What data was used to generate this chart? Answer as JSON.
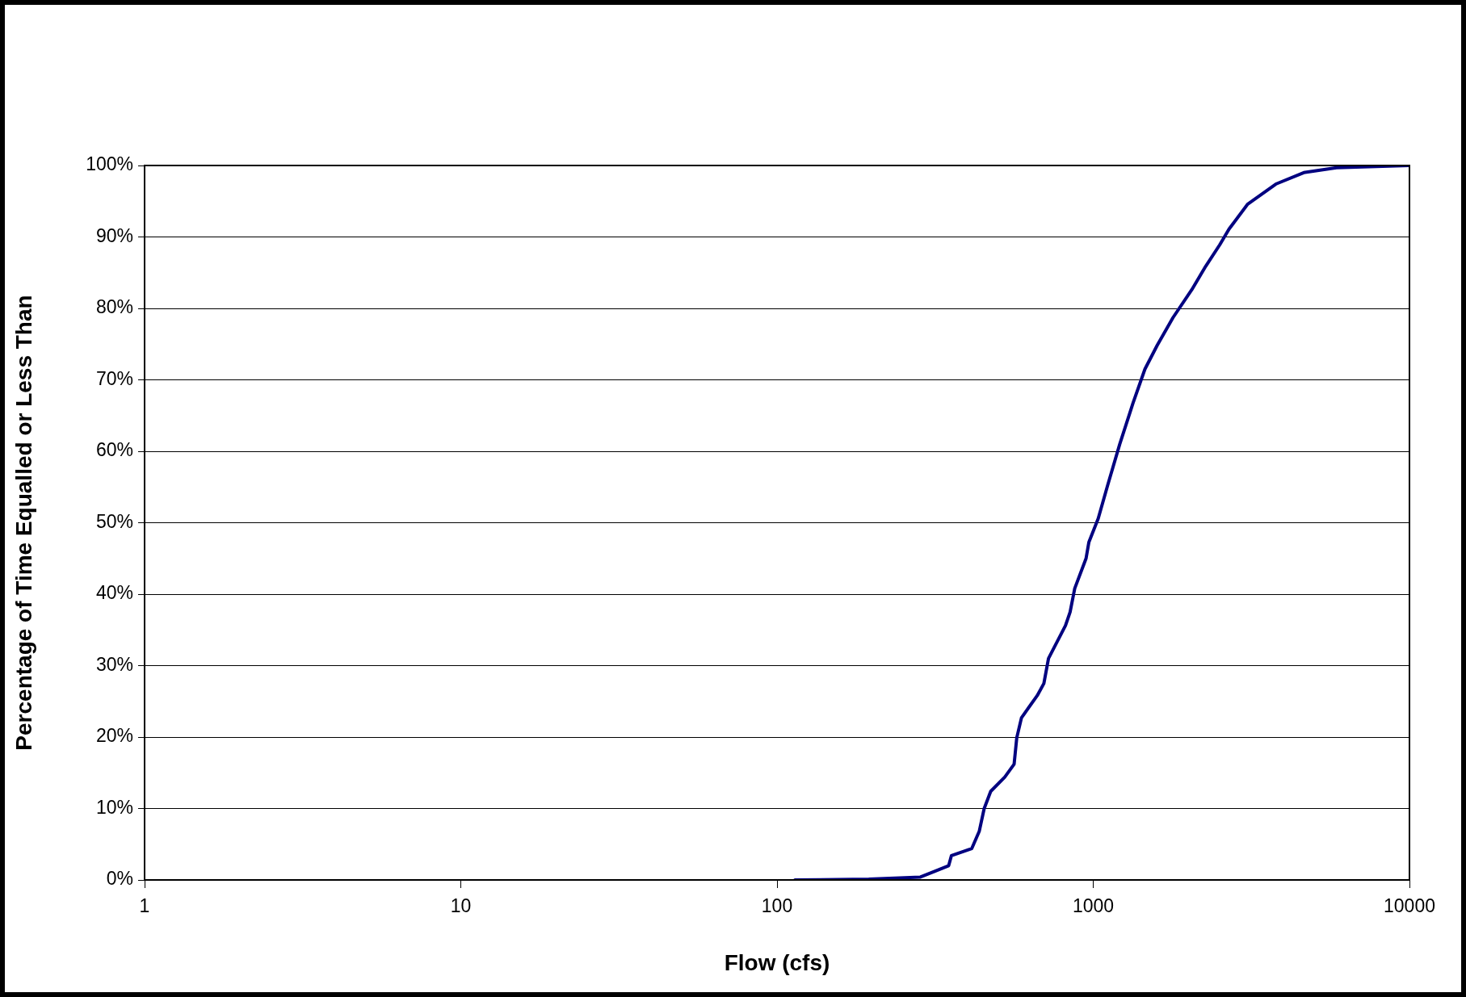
{
  "chart_data": {
    "type": "line",
    "xlabel": "Flow (cfs)",
    "ylabel": "Percentage of Time Equalled or Less Than",
    "log": "x",
    "grid": "y",
    "legend": false,
    "marker": "none",
    "line_style": "solid",
    "xlim": [
      1,
      10000
    ],
    "xticks": [
      1,
      10,
      100,
      1000,
      10000
    ],
    "ylim": [
      0,
      100
    ],
    "yticks": [
      {
        "value": 0,
        "label": "0%"
      },
      {
        "value": 10,
        "label": "10%"
      },
      {
        "value": 20,
        "label": "20%"
      },
      {
        "value": 30,
        "label": "30%"
      },
      {
        "value": 40,
        "label": "40%"
      },
      {
        "value": 50,
        "label": "50%"
      },
      {
        "value": 60,
        "label": "60%"
      },
      {
        "value": 70,
        "label": "70%"
      },
      {
        "value": 80,
        "label": "80%"
      },
      {
        "value": 90,
        "label": "90%"
      },
      {
        "value": 100,
        "label": "100%"
      }
    ],
    "series": [
      {
        "color": "#000080",
        "x": [
          114,
          195,
          284,
          315,
          349,
          356,
          413,
          436,
          452,
          474,
          525,
          562,
          573,
          593,
          665,
          698,
          722,
          817,
          845,
          874,
          949,
          969,
          1037,
          1110,
          1213,
          1335,
          1457,
          1592,
          1787,
          2049,
          2268,
          2512,
          2688,
          3080,
          3779,
          4633,
          5878,
          10000
        ],
        "values": [
          0,
          0.1,
          0.4,
          1.2,
          2,
          3.4,
          4.4,
          6.8,
          10,
          12.4,
          14.4,
          16.2,
          19.9,
          22.7,
          25.8,
          27.5,
          31,
          35.6,
          37.5,
          40.8,
          45,
          47.3,
          50.6,
          55.2,
          61,
          66.7,
          71.5,
          74.8,
          78.7,
          82.6,
          85.9,
          88.9,
          91.1,
          94.6,
          97.4,
          99,
          99.7,
          100
        ]
      }
    ]
  }
}
